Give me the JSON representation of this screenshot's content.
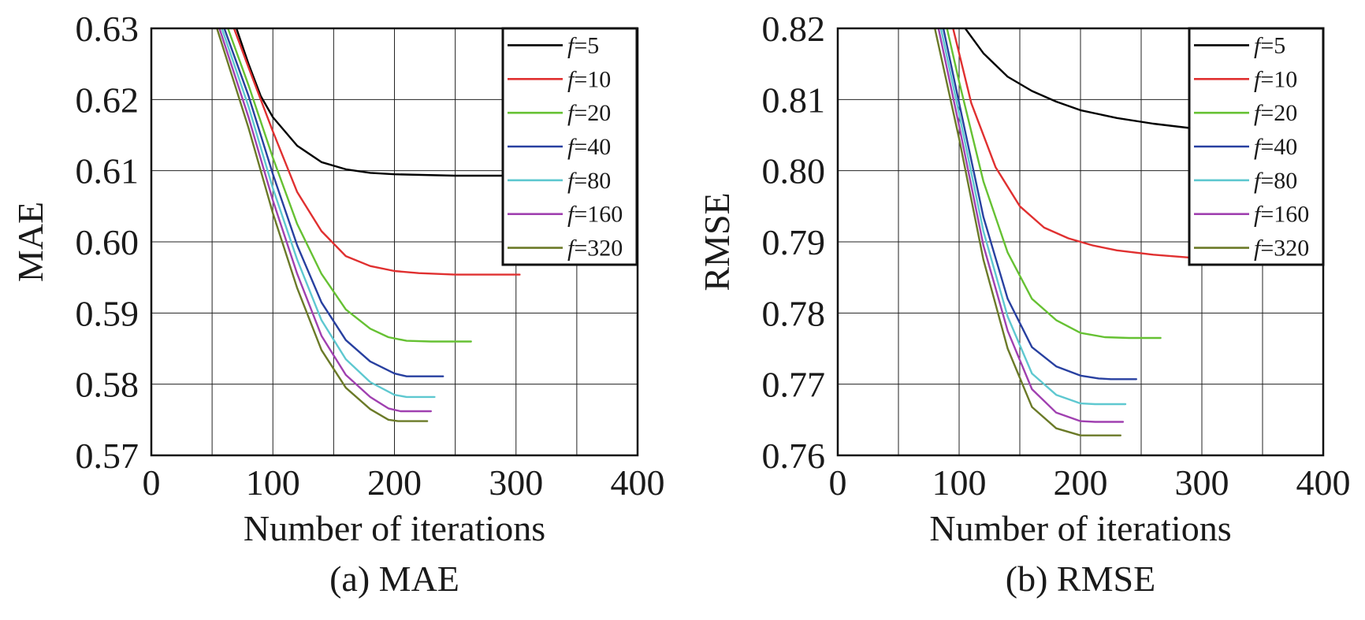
{
  "chart_data": [
    {
      "type": "line",
      "caption": "(a) MAE",
      "xlabel": "Number of iterations",
      "ylabel": "MAE",
      "xlim": [
        0,
        400
      ],
      "ylim": [
        0.57,
        0.63
      ],
      "x_ticks": [
        "0",
        "100",
        "200",
        "300",
        "400"
      ],
      "y_ticks": [
        "0.57",
        "0.58",
        "0.59",
        "0.60",
        "0.61",
        "0.62",
        "0.63"
      ],
      "grid": true,
      "legend_position": "top-right",
      "series": [
        {
          "name": "f=5",
          "label_var": "f",
          "label_value": "=5",
          "color": "#000000",
          "x": [
            70,
            80,
            90,
            100,
            120,
            140,
            160,
            180,
            200,
            250,
            300
          ],
          "y": [
            0.63,
            0.625,
            0.6205,
            0.6175,
            0.6135,
            0.6112,
            0.6102,
            0.6097,
            0.6095,
            0.6093,
            0.6093
          ]
        },
        {
          "name": "f=10",
          "label_var": "f",
          "label_value": "=10",
          "color": "#e03030",
          "x": [
            68,
            80,
            100,
            120,
            140,
            160,
            180,
            200,
            220,
            250,
            303
          ],
          "y": [
            0.63,
            0.6245,
            0.6155,
            0.607,
            0.6015,
            0.598,
            0.5966,
            0.5959,
            0.5956,
            0.5954,
            0.5954
          ]
        },
        {
          "name": "f=20",
          "label_var": "f",
          "label_value": "=20",
          "color": "#66c133",
          "x": [
            63,
            80,
            100,
            120,
            140,
            160,
            180,
            195,
            210,
            230,
            263
          ],
          "y": [
            0.63,
            0.622,
            0.6118,
            0.6025,
            0.5955,
            0.5905,
            0.5878,
            0.5866,
            0.5861,
            0.586,
            0.586
          ]
        },
        {
          "name": "f=40",
          "label_var": "f",
          "label_value": "=40",
          "color": "#2840a0",
          "x": [
            60,
            80,
            100,
            120,
            140,
            160,
            180,
            200,
            210,
            240
          ],
          "y": [
            0.63,
            0.6205,
            0.6095,
            0.5995,
            0.5915,
            0.5862,
            0.5832,
            0.5815,
            0.5811,
            0.5811
          ]
        },
        {
          "name": "f=80",
          "label_var": "f",
          "label_value": "=80",
          "color": "#5ec8d0",
          "x": [
            58,
            80,
            100,
            120,
            140,
            160,
            180,
            200,
            210,
            233
          ],
          "y": [
            0.63,
            0.619,
            0.6075,
            0.5975,
            0.589,
            0.5835,
            0.5803,
            0.5785,
            0.5782,
            0.5782
          ]
        },
        {
          "name": "f=160",
          "label_var": "f",
          "label_value": "=160",
          "color": "#a040b0",
          "x": [
            56,
            80,
            100,
            120,
            140,
            160,
            180,
            195,
            205,
            230
          ],
          "y": [
            0.63,
            0.6175,
            0.6058,
            0.5955,
            0.5868,
            0.5813,
            0.5782,
            0.5766,
            0.5762,
            0.5762
          ]
        },
        {
          "name": "f=320",
          "label_var": "f",
          "label_value": "=320",
          "color": "#6b7a28",
          "x": [
            54,
            80,
            100,
            120,
            140,
            160,
            180,
            195,
            203,
            227
          ],
          "y": [
            0.63,
            0.616,
            0.604,
            0.5935,
            0.5848,
            0.5795,
            0.5765,
            0.575,
            0.5748,
            0.5748
          ]
        }
      ]
    },
    {
      "type": "line",
      "caption": "(b) RMSE",
      "xlabel": "Number of iterations",
      "ylabel": "RMSE",
      "xlim": [
        0,
        400
      ],
      "ylim": [
        0.76,
        0.82
      ],
      "x_ticks": [
        "0",
        "100",
        "200",
        "300",
        "400"
      ],
      "y_ticks": [
        "0.76",
        "0.77",
        "0.78",
        "0.79",
        "0.80",
        "0.81",
        "0.82"
      ],
      "grid": true,
      "legend_position": "top-right",
      "series": [
        {
          "name": "f=5",
          "label_var": "f",
          "label_value": "=5",
          "color": "#000000",
          "x": [
            105,
            120,
            140,
            160,
            180,
            200,
            230,
            260,
            290
          ],
          "y": [
            0.82,
            0.8165,
            0.8132,
            0.8112,
            0.8097,
            0.8085,
            0.8074,
            0.8066,
            0.806
          ]
        },
        {
          "name": "f=10",
          "label_var": "f",
          "label_value": "=10",
          "color": "#e03030",
          "x": [
            95,
            110,
            130,
            150,
            170,
            190,
            210,
            230,
            260,
            290
          ],
          "y": [
            0.82,
            0.8095,
            0.8005,
            0.795,
            0.792,
            0.7905,
            0.7895,
            0.7888,
            0.7882,
            0.7878
          ]
        },
        {
          "name": "f=20",
          "label_var": "f",
          "label_value": "=20",
          "color": "#66c133",
          "x": [
            90,
            100,
            120,
            140,
            160,
            180,
            200,
            220,
            240,
            266
          ],
          "y": [
            0.82,
            0.8125,
            0.7985,
            0.7885,
            0.782,
            0.779,
            0.7772,
            0.7766,
            0.7765,
            0.7765
          ]
        },
        {
          "name": "f=40",
          "label_var": "f",
          "label_value": "=40",
          "color": "#2840a0",
          "x": [
            87,
            100,
            120,
            140,
            160,
            180,
            200,
            215,
            225,
            246
          ],
          "y": [
            0.82,
            0.8095,
            0.7935,
            0.782,
            0.7752,
            0.7725,
            0.7712,
            0.7708,
            0.7707,
            0.7707
          ]
        },
        {
          "name": "f=80",
          "label_var": "f",
          "label_value": "=80",
          "color": "#5ec8d0",
          "x": [
            85,
            100,
            120,
            140,
            160,
            180,
            200,
            212,
            222,
            237
          ],
          "y": [
            0.82,
            0.808,
            0.7915,
            0.7795,
            0.7715,
            0.7685,
            0.7673,
            0.7672,
            0.7672,
            0.7672
          ]
        },
        {
          "name": "f=160",
          "label_var": "f",
          "label_value": "=160",
          "color": "#a040b0",
          "x": [
            83,
            100,
            120,
            140,
            160,
            180,
            200,
            212,
            222,
            235
          ],
          "y": [
            0.82,
            0.8063,
            0.7895,
            0.7775,
            0.7693,
            0.766,
            0.7648,
            0.7647,
            0.7647,
            0.7647
          ]
        },
        {
          "name": "f=320",
          "label_var": "f",
          "label_value": "=320",
          "color": "#6b7a28",
          "x": [
            80,
            100,
            120,
            140,
            160,
            180,
            200,
            210,
            220,
            233
          ],
          "y": [
            0.82,
            0.8045,
            0.7875,
            0.775,
            0.7668,
            0.7638,
            0.7628,
            0.7628,
            0.7628,
            0.7628
          ]
        }
      ]
    }
  ]
}
